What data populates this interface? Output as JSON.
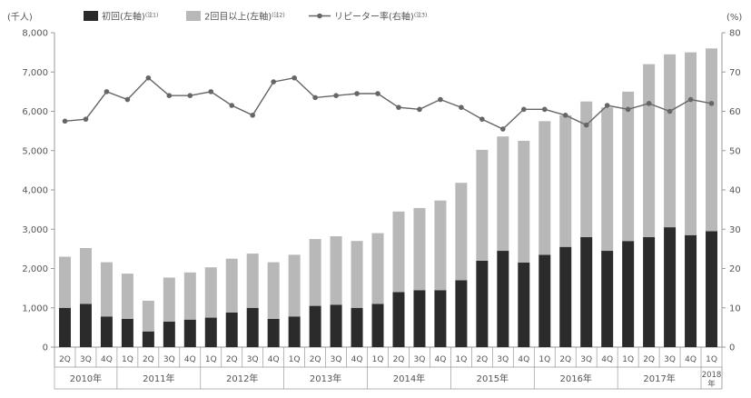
{
  "colors": {
    "first_time_bar": "#2b2b2b",
    "repeat_bar": "#b8b8b8",
    "repeater_line": "#666666",
    "axis": "#9a9a9a",
    "text": "#555555"
  },
  "chart_data": {
    "type": "bar",
    "stacked": true,
    "title": "",
    "y_left_unit": "(千人)",
    "y_right_unit": "(%)",
    "ylim_left": [
      0,
      8000
    ],
    "ylim_right": [
      0,
      80
    ],
    "yticks_left": [
      "0",
      "1,000",
      "2,000",
      "3,000",
      "4,000",
      "5,000",
      "6,000",
      "7,000",
      "8,000"
    ],
    "yticks_right": [
      "0",
      "10",
      "20",
      "30",
      "40",
      "50",
      "60",
      "70",
      "80"
    ],
    "grid": false,
    "legend_position": "top",
    "categories": [
      "2Q",
      "3Q",
      "4Q",
      "1Q",
      "2Q",
      "3Q",
      "4Q",
      "1Q",
      "2Q",
      "3Q",
      "4Q",
      "1Q",
      "2Q",
      "3Q",
      "4Q",
      "1Q",
      "2Q",
      "3Q",
      "4Q",
      "1Q",
      "2Q",
      "3Q",
      "4Q",
      "1Q",
      "2Q",
      "3Q",
      "4Q",
      "1Q",
      "2Q",
      "3Q",
      "4Q",
      "1Q"
    ],
    "years": [
      {
        "label": "2010年",
        "count": 3
      },
      {
        "label": "2011年",
        "count": 4
      },
      {
        "label": "2012年",
        "count": 4
      },
      {
        "label": "2013年",
        "count": 4
      },
      {
        "label": "2014年",
        "count": 4
      },
      {
        "label": "2015年",
        "count": 4
      },
      {
        "label": "2016年",
        "count": 4
      },
      {
        "label": "2017年",
        "count": 4
      },
      {
        "label": "2018\n年",
        "count": 1
      }
    ],
    "series": [
      {
        "name": "初回(左軸)",
        "note": "(注1)",
        "kind": "bar",
        "axis": "left",
        "values": [
          1000,
          1100,
          780,
          720,
          400,
          650,
          700,
          750,
          880,
          1000,
          720,
          780,
          1050,
          1080,
          1000,
          1100,
          1400,
          1450,
          1450,
          1700,
          2200,
          2450,
          2150,
          2350,
          2550,
          2800,
          2450,
          2700,
          2800,
          3050,
          2850,
          2950
        ]
      },
      {
        "name": "2回目以上(左軸)",
        "note": "(注2)",
        "kind": "bar",
        "axis": "left",
        "values": [
          1300,
          1420,
          1380,
          1150,
          780,
          1120,
          1200,
          1280,
          1370,
          1380,
          1440,
          1570,
          1700,
          1740,
          1700,
          1800,
          2050,
          2090,
          2280,
          2480,
          2820,
          2910,
          3100,
          3400,
          3350,
          3450,
          3650,
          3800,
          4400,
          4400,
          4650,
          4650
        ]
      },
      {
        "name": "リピーター率(右軸)",
        "note": "(注3)",
        "kind": "line",
        "axis": "right",
        "values": [
          57.5,
          58,
          65,
          63,
          68.5,
          64,
          64,
          65,
          61.5,
          59,
          67.5,
          68.5,
          63.5,
          64,
          64.5,
          64.5,
          61,
          60.5,
          63,
          61,
          58,
          55.5,
          60.5,
          60.5,
          59,
          56.5,
          61.5,
          60.5,
          62,
          60,
          63,
          62
        ]
      }
    ]
  }
}
